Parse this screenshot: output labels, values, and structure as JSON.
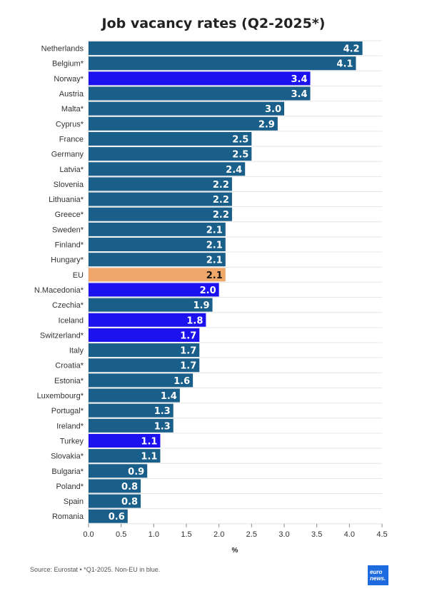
{
  "header": {
    "title": "Job vacancy rates (Q2-2025*)"
  },
  "footer": {
    "source": "Source: Eurostat • *Q1-2025. Non-EU in blue.",
    "logo_line1": "euro",
    "logo_line2": "news."
  },
  "colors": {
    "eu_member": "#1a5f8a",
    "non_eu": "#1c12f0",
    "eu_average": "#f0a86a",
    "label_light": "#ffffff",
    "label_dark": "#111111"
  },
  "chart_data": {
    "type": "bar",
    "orientation": "horizontal",
    "title": "Job vacancy rates (Q2-2025*)",
    "xlabel": "%",
    "xlim": [
      0,
      4.5
    ],
    "xticks": [
      "0.0",
      "0.5",
      "1.0",
      "1.5",
      "2.0",
      "2.5",
      "3.0",
      "3.5",
      "4.0",
      "4.5"
    ],
    "grid": true,
    "categories": [
      "Netherlands",
      "Belgium*",
      "Norway*",
      "Austria",
      "Malta*",
      "Cyprus*",
      "France",
      "Germany",
      "Latvia*",
      "Slovenia",
      "Lithuania*",
      "Greece*",
      "Sweden*",
      "Finland*",
      "Hungary*",
      "EU",
      "N.Macedonia*",
      "Czechia*",
      "Iceland",
      "Switzerland*",
      "Italy",
      "Croatia*",
      "Estonia*",
      "Luxembourg*",
      "Portugal*",
      "Ireland*",
      "Turkey",
      "Slovakia*",
      "Bulgaria*",
      "Poland*",
      "Spain",
      "Romania"
    ],
    "values": [
      4.2,
      4.1,
      3.4,
      3.4,
      3.0,
      2.9,
      2.5,
      2.5,
      2.4,
      2.2,
      2.2,
      2.2,
      2.1,
      2.1,
      2.1,
      2.1,
      2.0,
      1.9,
      1.8,
      1.7,
      1.7,
      1.7,
      1.6,
      1.4,
      1.3,
      1.3,
      1.1,
      1.1,
      0.9,
      0.8,
      0.8,
      0.6
    ],
    "value_labels": [
      "4.2",
      "4.1",
      "3.4",
      "3.4",
      "3.0",
      "2.9",
      "2.5",
      "2.5",
      "2.4",
      "2.2",
      "2.2",
      "2.2",
      "2.1",
      "2.1",
      "2.1",
      "2.1",
      "2.0",
      "1.9",
      "1.8",
      "1.7",
      "1.7",
      "1.7",
      "1.6",
      "1.4",
      "1.3",
      "1.3",
      "1.1",
      "1.1",
      "0.9",
      "0.8",
      "0.8",
      "0.6"
    ],
    "groups": [
      "eu",
      "eu",
      "non_eu",
      "eu",
      "eu",
      "eu",
      "eu",
      "eu",
      "eu",
      "eu",
      "eu",
      "eu",
      "eu",
      "eu",
      "eu",
      "eu_average",
      "non_eu",
      "eu",
      "non_eu",
      "non_eu",
      "eu",
      "eu",
      "eu",
      "eu",
      "eu",
      "eu",
      "non_eu",
      "eu",
      "eu",
      "eu",
      "eu",
      "eu"
    ]
  }
}
